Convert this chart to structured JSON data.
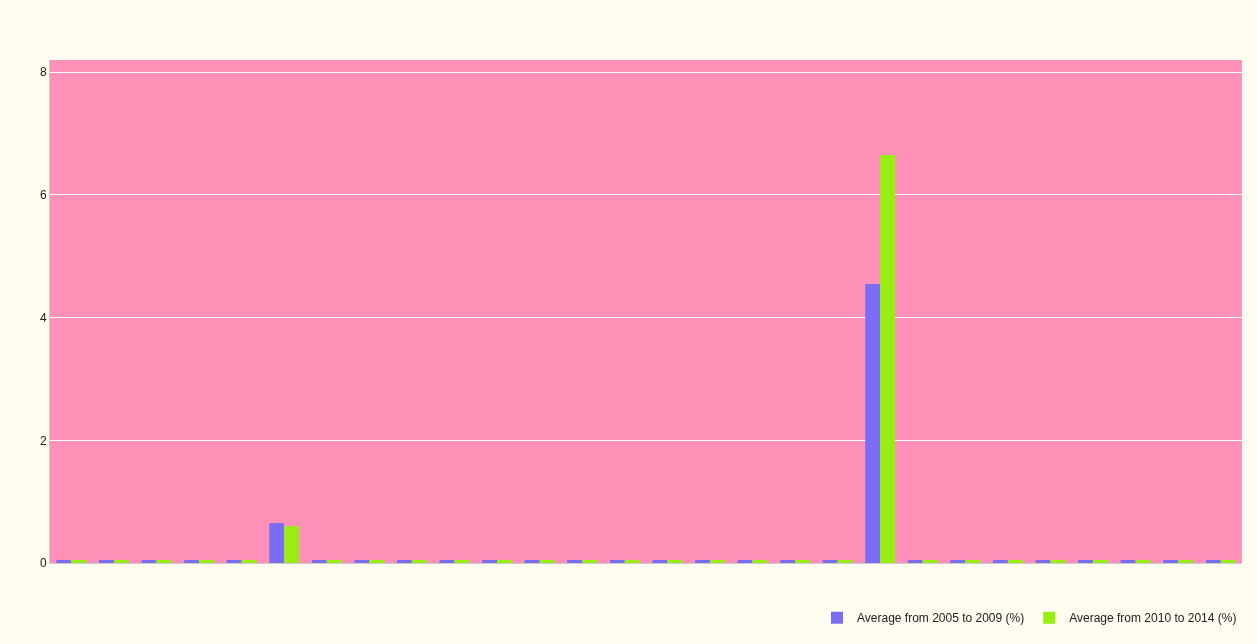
{
  "chart_data": {
    "type": "bar",
    "categories": [
      null,
      null,
      null,
      null,
      null,
      null,
      null,
      null,
      null,
      null,
      null,
      null,
      null,
      null,
      null,
      null,
      null,
      null,
      null,
      null,
      null,
      null,
      null,
      null,
      null,
      null,
      null,
      null
    ],
    "series": [
      {
        "name": "Average from 2005 to 2009 (%)",
        "color": "#7b6cf6",
        "values": [
          0.05,
          0.05,
          0.05,
          0.05,
          0.05,
          0.65,
          0.05,
          0.05,
          0.05,
          0.05,
          0.05,
          0.05,
          0.05,
          0.05,
          0.05,
          0.05,
          0.05,
          0.05,
          0.05,
          4.55,
          0.05,
          0.05,
          0.05,
          0.05,
          0.05,
          0.05,
          0.05,
          0.05
        ]
      },
      {
        "name": "Average from 2010 to 2014 (%)",
        "color": "#99ee11",
        "values": [
          0.05,
          0.05,
          0.05,
          0.05,
          0.05,
          0.6,
          0.05,
          0.05,
          0.05,
          0.05,
          0.05,
          0.05,
          0.05,
          0.05,
          0.05,
          0.05,
          0.05,
          0.05,
          0.05,
          6.65,
          0.05,
          0.05,
          0.05,
          0.05,
          0.05,
          0.05,
          0.05,
          0.05
        ]
      }
    ],
    "ylim": [
      0,
      8.2
    ],
    "yticks": [
      0,
      2,
      4,
      6,
      8
    ],
    "grid": "y",
    "legend": "bottom right"
  }
}
